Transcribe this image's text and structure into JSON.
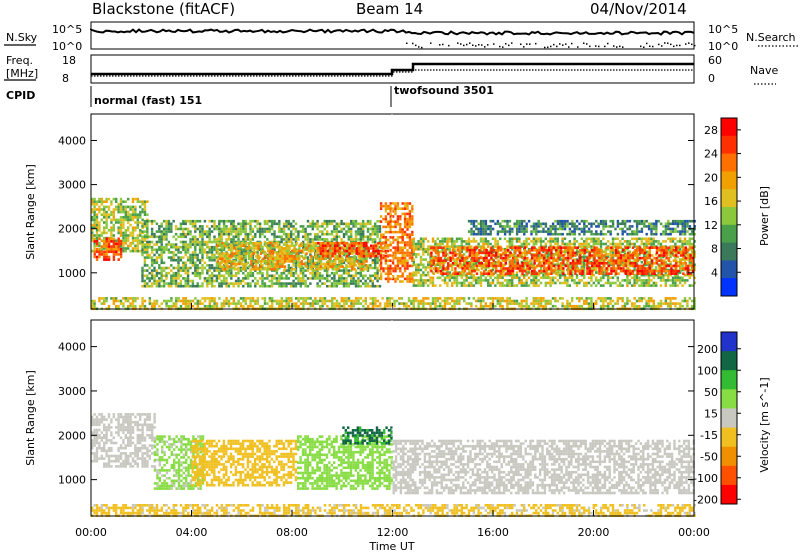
{
  "header": {
    "station": "Blackstone (fitACF)",
    "beam": "Beam 14",
    "date": "04/Nov/2014"
  },
  "noise_panel": {
    "left_label": "N.Sky",
    "right_label": "N.Search",
    "left_ticks": [
      "10^5",
      "10^0"
    ],
    "right_ticks": [
      "10^5",
      "10^0"
    ]
  },
  "freq_panel": {
    "left_label_1": "Freq.",
    "left_label_2": "[MHz]",
    "left_ticks": [
      "18",
      "8"
    ],
    "right_label": "Nave",
    "right_ticks": [
      "60",
      "0"
    ]
  },
  "cpid": {
    "label": "CPID",
    "segments": [
      {
        "name": "normal (fast) 151",
        "start_hour": 0
      },
      {
        "name": "twofsound 3501",
        "start_hour": 12
      }
    ]
  },
  "chart_data": [
    {
      "type": "heatmap",
      "parameter": "Power",
      "ylabel": "Slant Range [km]",
      "xlabel": "",
      "xlim_hours": [
        0,
        24
      ],
      "ylim_km": [
        180,
        4600
      ],
      "y_ticks": [
        1000,
        2000,
        3000,
        4000
      ],
      "colorbar": {
        "label": "Power [dB]",
        "ticks": [
          4,
          8,
          12,
          16,
          20,
          24,
          28
        ],
        "range": [
          0,
          30
        ],
        "colors": [
          "#0033ff",
          "#2255aa",
          "#3a7a5a",
          "#4aa04a",
          "#8cc83c",
          "#e0c020",
          "#f0a000",
          "#ff7000",
          "#ff3000",
          "#ff0000"
        ]
      },
      "echo_bands": [
        {
          "t0": 0.0,
          "t1": 2.2,
          "r0": 1500,
          "r1": 2700,
          "value": 14
        },
        {
          "t0": 0.1,
          "t1": 1.2,
          "r0": 1300,
          "r1": 1800,
          "value": 24
        },
        {
          "t0": 2.0,
          "t1": 11.5,
          "r0": 700,
          "r1": 2200,
          "value": 12
        },
        {
          "t0": 5.0,
          "t1": 11.0,
          "r0": 1100,
          "r1": 1700,
          "value": 18
        },
        {
          "t0": 9.0,
          "t1": 11.8,
          "r0": 1400,
          "r1": 1700,
          "value": 26
        },
        {
          "t0": 11.5,
          "t1": 12.8,
          "r0": 800,
          "r1": 2600,
          "value": 22
        },
        {
          "t0": 12.8,
          "t1": 24.0,
          "r0": 700,
          "r1": 1800,
          "value": 14
        },
        {
          "t0": 13.5,
          "t1": 24.0,
          "r0": 1000,
          "r1": 1600,
          "value": 24
        },
        {
          "t0": 15.0,
          "t1": 24.0,
          "r0": 1900,
          "r1": 2200,
          "value": 8
        },
        {
          "t0": 0.0,
          "t1": 24.0,
          "r0": 180,
          "r1": 450,
          "value": 16
        }
      ]
    },
    {
      "type": "heatmap",
      "parameter": "Velocity",
      "ylabel": "Slant Range [km]",
      "xlabel": "Time UT",
      "x_ticks": [
        "00:00",
        "04:00",
        "08:00",
        "12:00",
        "16:00",
        "20:00",
        "00:00"
      ],
      "xlim_hours": [
        0,
        24
      ],
      "ylim_km": [
        180,
        4600
      ],
      "y_ticks": [
        1000,
        2000,
        3000,
        4000
      ],
      "colorbar": {
        "label": "Velocity [m s^-1]",
        "ticks": [
          200,
          100,
          50,
          15,
          -15,
          -50,
          -100,
          -200
        ],
        "range": [
          -250,
          250
        ],
        "colors": [
          "#2233cc",
          "#116644",
          "#33bb33",
          "#88dd44",
          "#c8c8c0",
          "#f0c020",
          "#f09000",
          "#ff5000",
          "#ff0000"
        ]
      },
      "echo_bands": [
        {
          "t0": 0.0,
          "t1": 2.5,
          "r0": 1300,
          "r1": 2500,
          "value": 0
        },
        {
          "t0": 2.5,
          "t1": 4.5,
          "r0": 800,
          "r1": 2000,
          "value": 40
        },
        {
          "t0": 4.0,
          "t1": 8.2,
          "r0": 900,
          "r1": 1900,
          "value": -60
        },
        {
          "t0": 8.2,
          "t1": 12.0,
          "r0": 800,
          "r1": 2000,
          "value": 60
        },
        {
          "t0": 10.0,
          "t1": 12.0,
          "r0": 1800,
          "r1": 2200,
          "value": 150
        },
        {
          "t0": 12.0,
          "t1": 24.0,
          "r0": 700,
          "r1": 1900,
          "value": 0
        },
        {
          "t0": 0.0,
          "t1": 24.0,
          "r0": 180,
          "r1": 450,
          "value": -40
        }
      ]
    }
  ]
}
